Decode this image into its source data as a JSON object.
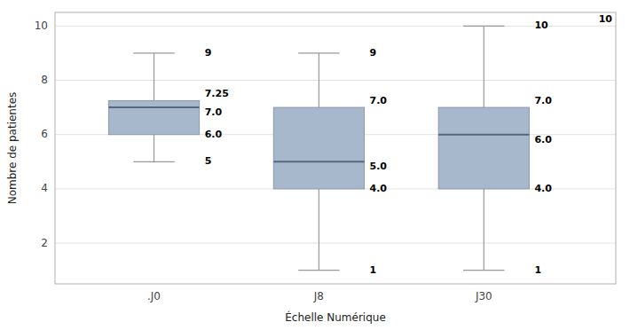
{
  "chart_data": {
    "type": "box",
    "categories": [
      ".J0",
      "J8",
      "J30"
    ],
    "boxes": [
      {
        "whisker_low": 5,
        "q1": 6.0,
        "median": 7.0,
        "q3": 7.25,
        "whisker_high": 9,
        "value_labels": {
          "whisker_high": "9",
          "q3": "7.25",
          "median": "7.0",
          "q1": "6.0",
          "whisker_low": "5"
        }
      },
      {
        "whisker_low": 1,
        "q1": 4.0,
        "median": 5.0,
        "q3": 7.0,
        "whisker_high": 9,
        "value_labels": {
          "whisker_high": "9",
          "q3": "7.0",
          "median": "5.0",
          "q1": "4.0",
          "whisker_low": "1"
        }
      },
      {
        "whisker_low": 1,
        "q1": 4.0,
        "median": 6.0,
        "q3": 7.0,
        "whisker_high": 10,
        "value_labels": {
          "whisker_high": "10",
          "q3": "7.0",
          "median": "6.0",
          "q1": "4.0",
          "whisker_low": "1"
        }
      }
    ],
    "color": "#a8b8cc",
    "xlabel": "Échelle Numérique",
    "ylabel": "Nombre de patientes",
    "ylim": [
      0.5,
      10.5
    ],
    "yticks": [
      2,
      4,
      6,
      8,
      10
    ],
    "grid": true,
    "data_labels": true,
    "annotation": "10"
  }
}
